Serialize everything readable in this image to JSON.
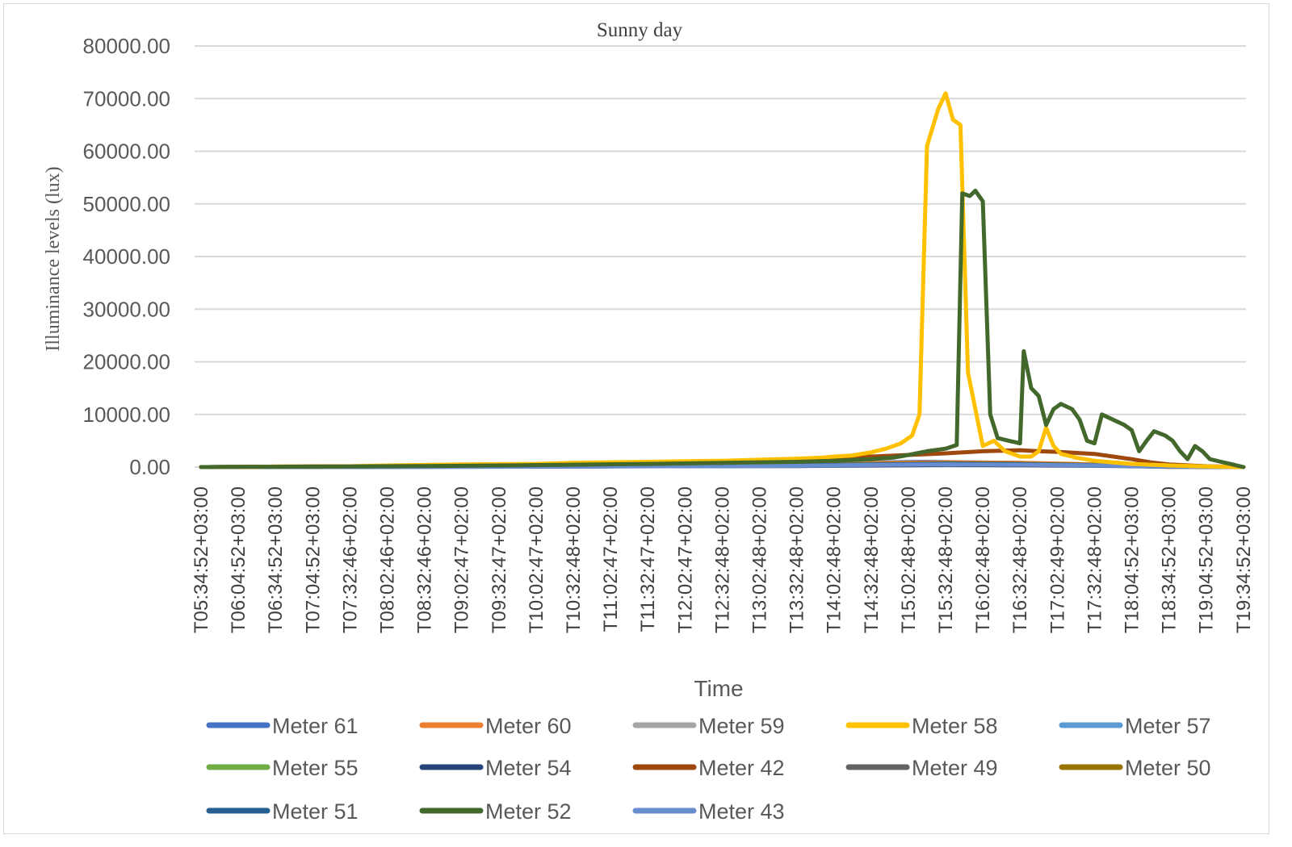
{
  "chart_data": {
    "type": "line",
    "title": "Sunny day",
    "xlabel": "Time",
    "ylabel": "Illuminance levels (lux)",
    "ylim": [
      0,
      80000
    ],
    "y_ticks": [
      "0.00",
      "10000.00",
      "20000.00",
      "30000.00",
      "40000.00",
      "50000.00",
      "60000.00",
      "70000.00",
      "80000.00"
    ],
    "grid": "horizontal",
    "legend_position": "bottom",
    "x_tick_labels": [
      "T05:34:52+03:00",
      "T06:04:52+03:00",
      "T06:34:52+03:00",
      "T07:04:52+03:00",
      "T07:32:46+02:00",
      "T08:02:46+02:00",
      "T08:32:46+02:00",
      "T09:02:47+02:00",
      "T09:32:47+02:00",
      "T10:02:47+02:00",
      "T10:32:48+02:00",
      "T11:02:47+02:00",
      "T11:32:47+02:00",
      "T12:02:47+02:00",
      "T12:32:48+02:00",
      "T13:02:48+02:00",
      "T13:32:48+02:00",
      "T14:02:48+02:00",
      "T14:32:48+02:00",
      "T15:02:48+02:00",
      "T15:32:48+02:00",
      "T16:02:48+02:00",
      "T16:32:48+02:00",
      "T17:02:49+02:00",
      "T17:32:48+02:00",
      "T18:04:52+03:00",
      "T18:34:52+03:00",
      "T19:04:52+03:00",
      "T19:34:52+03:00"
    ],
    "series": [
      {
        "name": "Meter 61",
        "color": "#4472c4",
        "points": [
          [
            0,
            0
          ],
          [
            8,
            60
          ],
          [
            12,
            250
          ],
          [
            16,
            450
          ],
          [
            17.5,
            600
          ],
          [
            18.5,
            900
          ],
          [
            19.5,
            1000
          ],
          [
            20.5,
            900
          ],
          [
            22,
            800
          ],
          [
            23.5,
            500
          ],
          [
            25,
            200
          ],
          [
            26,
            50
          ],
          [
            28,
            0
          ]
        ]
      },
      {
        "name": "Meter 60",
        "color": "#ed7d31",
        "points": [
          [
            0,
            0
          ],
          [
            8,
            100
          ],
          [
            12,
            300
          ],
          [
            16,
            500
          ],
          [
            17.5,
            700
          ],
          [
            18.5,
            800
          ],
          [
            20,
            900
          ],
          [
            22,
            800
          ],
          [
            23.5,
            600
          ],
          [
            25,
            250
          ],
          [
            26,
            50
          ],
          [
            28,
            0
          ]
        ]
      },
      {
        "name": "Meter 59",
        "color": "#a5a5a5",
        "points": [
          [
            0,
            0
          ],
          [
            8,
            80
          ],
          [
            12,
            200
          ],
          [
            16,
            400
          ],
          [
            18,
            600
          ],
          [
            20,
            700
          ],
          [
            22,
            600
          ],
          [
            24,
            400
          ],
          [
            25.5,
            150
          ],
          [
            26.5,
            0
          ],
          [
            28,
            0
          ]
        ]
      },
      {
        "name": "Meter 58",
        "color": "#ffc000",
        "points": [
          [
            0,
            0
          ],
          [
            1.5,
            50
          ],
          [
            2,
            100
          ],
          [
            3,
            120
          ],
          [
            4,
            150
          ],
          [
            5,
            300
          ],
          [
            6,
            400
          ],
          [
            7,
            500
          ],
          [
            8,
            550
          ],
          [
            9,
            600
          ],
          [
            10,
            800
          ],
          [
            11,
            900
          ],
          [
            12,
            1000
          ],
          [
            13,
            1100
          ],
          [
            14,
            1200
          ],
          [
            15,
            1400
          ],
          [
            16,
            1600
          ],
          [
            16.7,
            1800
          ],
          [
            17,
            2000
          ],
          [
            17.5,
            2200
          ],
          [
            18,
            2800
          ],
          [
            18.4,
            3500
          ],
          [
            18.8,
            4500
          ],
          [
            19.1,
            6000
          ],
          [
            19.3,
            10000
          ],
          [
            19.5,
            61000
          ],
          [
            19.8,
            68000
          ],
          [
            20,
            71000
          ],
          [
            20.2,
            66000
          ],
          [
            20.4,
            65000
          ],
          [
            20.6,
            18000
          ],
          [
            20.8,
            11000
          ],
          [
            21,
            4000
          ],
          [
            21.3,
            5000
          ],
          [
            21.6,
            3000
          ],
          [
            22,
            2000
          ],
          [
            22.3,
            2000
          ],
          [
            22.5,
            3000
          ],
          [
            22.7,
            7500
          ],
          [
            22.9,
            4000
          ],
          [
            23.1,
            2500
          ],
          [
            23.4,
            2000
          ],
          [
            23.5,
            1800
          ],
          [
            24,
            1200
          ],
          [
            25,
            600
          ],
          [
            26,
            300
          ],
          [
            27,
            100
          ],
          [
            28,
            0
          ]
        ]
      },
      {
        "name": "Meter 57",
        "color": "#5b9bd5",
        "points": [
          [
            0,
            0
          ],
          [
            10,
            100
          ],
          [
            16,
            300
          ],
          [
            18,
            500
          ],
          [
            20,
            600
          ],
          [
            22,
            500
          ],
          [
            24,
            300
          ],
          [
            26,
            100
          ],
          [
            28,
            0
          ]
        ]
      },
      {
        "name": "Meter 55",
        "color": "#70ad47",
        "points": [
          [
            0,
            0
          ],
          [
            10,
            150
          ],
          [
            16,
            350
          ],
          [
            18,
            550
          ],
          [
            20,
            650
          ],
          [
            22,
            550
          ],
          [
            24,
            350
          ],
          [
            26,
            100
          ],
          [
            28,
            0
          ]
        ]
      },
      {
        "name": "Meter 54",
        "color": "#264478",
        "points": [
          [
            0,
            0
          ],
          [
            10,
            100
          ],
          [
            16,
            200
          ],
          [
            18,
            300
          ],
          [
            20,
            400
          ],
          [
            22,
            350
          ],
          [
            24,
            250
          ],
          [
            26,
            80
          ],
          [
            28,
            0
          ]
        ]
      },
      {
        "name": "Meter 42",
        "color": "#9e480e",
        "points": [
          [
            0,
            0
          ],
          [
            2,
            80
          ],
          [
            4,
            150
          ],
          [
            6,
            250
          ],
          [
            8,
            400
          ],
          [
            10,
            600
          ],
          [
            12,
            800
          ],
          [
            14,
            1100
          ],
          [
            16,
            1500
          ],
          [
            17,
            1800
          ],
          [
            18,
            2000
          ],
          [
            19,
            2300
          ],
          [
            20,
            2600
          ],
          [
            21,
            3000
          ],
          [
            22,
            3200
          ],
          [
            22.5,
            3000
          ],
          [
            23,
            2900
          ],
          [
            24,
            2500
          ],
          [
            24.5,
            2000
          ],
          [
            25,
            1500
          ],
          [
            25.5,
            900
          ],
          [
            26,
            500
          ],
          [
            27,
            150
          ],
          [
            28,
            0
          ]
        ]
      },
      {
        "name": "Meter 49",
        "color": "#636363",
        "points": [
          [
            0,
            0
          ],
          [
            10,
            120
          ],
          [
            16,
            300
          ],
          [
            18,
            500
          ],
          [
            20,
            700
          ],
          [
            22,
            600
          ],
          [
            24,
            400
          ],
          [
            26,
            120
          ],
          [
            28,
            0
          ]
        ]
      },
      {
        "name": "Meter 50",
        "color": "#997300",
        "points": [
          [
            0,
            0
          ],
          [
            10,
            150
          ],
          [
            16,
            350
          ],
          [
            18,
            550
          ],
          [
            20,
            750
          ],
          [
            22,
            650
          ],
          [
            24,
            450
          ],
          [
            26,
            150
          ],
          [
            28,
            0
          ]
        ]
      },
      {
        "name": "Meter 51",
        "color": "#255e91",
        "points": [
          [
            0,
            0
          ],
          [
            10,
            130
          ],
          [
            16,
            300
          ],
          [
            18,
            500
          ],
          [
            20,
            650
          ],
          [
            22,
            550
          ],
          [
            24,
            350
          ],
          [
            26,
            100
          ],
          [
            28,
            0
          ]
        ]
      },
      {
        "name": "Meter 52",
        "color": "#43682b",
        "points": [
          [
            0,
            0
          ],
          [
            2,
            60
          ],
          [
            4,
            120
          ],
          [
            6,
            200
          ],
          [
            8,
            300
          ],
          [
            10,
            450
          ],
          [
            12,
            600
          ],
          [
            14,
            800
          ],
          [
            16,
            1000
          ],
          [
            17,
            1200
          ],
          [
            18,
            1500
          ],
          [
            18.6,
            1800
          ],
          [
            19,
            2300
          ],
          [
            19.5,
            3000
          ],
          [
            20,
            3500
          ],
          [
            20.3,
            4200
          ],
          [
            20.45,
            52000
          ],
          [
            20.65,
            51500
          ],
          [
            20.8,
            52500
          ],
          [
            21,
            50500
          ],
          [
            21.2,
            10000
          ],
          [
            21.4,
            5500
          ],
          [
            21.7,
            5000
          ],
          [
            22,
            4500
          ],
          [
            22.1,
            22000
          ],
          [
            22.3,
            15000
          ],
          [
            22.5,
            13500
          ],
          [
            22.7,
            8000
          ],
          [
            22.9,
            11000
          ],
          [
            23.1,
            12000
          ],
          [
            23.4,
            11000
          ],
          [
            23.6,
            9000
          ],
          [
            23.8,
            5000
          ],
          [
            24,
            4500
          ],
          [
            24.2,
            10000
          ],
          [
            24.5,
            9000
          ],
          [
            24.8,
            8000
          ],
          [
            25,
            7000
          ],
          [
            25.2,
            3000
          ],
          [
            25.4,
            5000
          ],
          [
            25.6,
            6800
          ],
          [
            25.9,
            6000
          ],
          [
            26.1,
            5000
          ],
          [
            26.3,
            3000
          ],
          [
            26.5,
            1500
          ],
          [
            26.7,
            4000
          ],
          [
            26.9,
            3000
          ],
          [
            27.1,
            1500
          ],
          [
            27.4,
            1000
          ],
          [
            27.7,
            500
          ],
          [
            28,
            0
          ]
        ]
      },
      {
        "name": "Meter 43",
        "color": "#698ed0",
        "points": [
          [
            0,
            0
          ],
          [
            10,
            100
          ],
          [
            16,
            250
          ],
          [
            18,
            400
          ],
          [
            20,
            500
          ],
          [
            22,
            450
          ],
          [
            24,
            300
          ],
          [
            26,
            100
          ],
          [
            28,
            0
          ]
        ]
      }
    ]
  }
}
